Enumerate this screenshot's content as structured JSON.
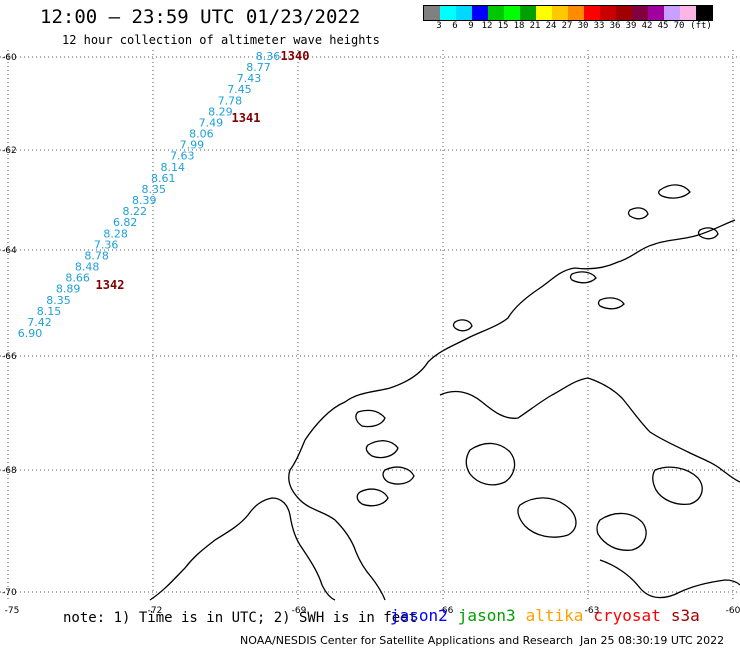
{
  "header": {
    "title": "12:00 – 23:59 UTC 01/23/2022",
    "subtitle": "12 hour collection of altimeter wave heights"
  },
  "legend": {
    "colors": [
      "#808080",
      "#00ffff",
      "#00d8ff",
      "#0000ff",
      "#00c800",
      "#00ff00",
      "#00a000",
      "#ffff00",
      "#ffc800",
      "#ff8c00",
      "#ff0000",
      "#c80000",
      "#a00000",
      "#800040",
      "#a000a0",
      "#c8a0ff",
      "#ffb4e6",
      "#000000"
    ],
    "labels": [
      "3",
      "6",
      "9",
      "12",
      "15",
      "18",
      "21",
      "24",
      "27",
      "30",
      "33",
      "36",
      "39",
      "42",
      "45",
      "70",
      "(ft)"
    ]
  },
  "map": {
    "lon_labels": [
      "-75",
      "-72",
      "-69",
      "-66",
      "-63",
      "-60"
    ],
    "lat_labels": [
      "-60",
      "-62",
      "-64",
      "-66",
      "-68",
      "-70"
    ],
    "track_color": "#1ea0d8",
    "pass_color": "#800000",
    "pass_numbers": [
      "1340",
      "1341",
      "1342"
    ],
    "swh_values": [
      "8.36",
      "8.77",
      "7.43",
      "7.45",
      "7.78",
      "8.29",
      "7.49",
      "8.06",
      "7.99",
      "7.63",
      "8.14",
      "8.61",
      "8.35",
      "8.39",
      "8.22",
      "6.82",
      "8.28",
      "7.36",
      "8.78",
      "8.48",
      "8.66",
      "8.89",
      "8.35",
      "8.15",
      "7.42",
      "6.90"
    ]
  },
  "footer": {
    "note": "note: 1) Time is in UTC; 2) SWH is in feet",
    "satellites": [
      {
        "name": "jason2",
        "color": "#0000ff"
      },
      {
        "name": "jason3",
        "color": "#00a000"
      },
      {
        "name": "altika",
        "color": "#ffa000"
      },
      {
        "name": "cryosat",
        "color": "#ff0000"
      },
      {
        "name": "s3a",
        "color": "#a00000"
      }
    ],
    "credit": "NOAA/NESDIS Center for Satellite Applications and Research",
    "timestamp": "Jan 25 08:30:19 UTC 2022"
  }
}
